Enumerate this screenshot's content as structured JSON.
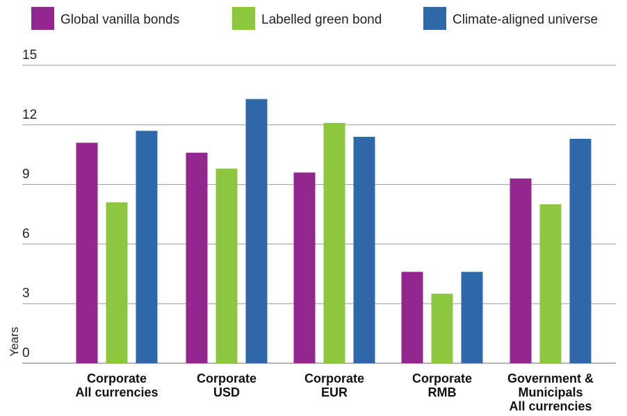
{
  "chart_data": {
    "type": "bar",
    "title": "",
    "xlabel": "",
    "ylabel": "Years",
    "ylim": [
      0,
      15
    ],
    "yticks": [
      0,
      3,
      6,
      9,
      12,
      15
    ],
    "grid": true,
    "legend_position": "top",
    "categories": [
      [
        "Corporate",
        "All currencies"
      ],
      [
        "Corporate",
        "USD"
      ],
      [
        "Corporate",
        "EUR"
      ],
      [
        "Corporate",
        "RMB"
      ],
      [
        "Government &",
        "Municipals",
        "All currencies"
      ]
    ],
    "series": [
      {
        "name": "Global vanilla bonds",
        "color": "#93278f",
        "values": [
          11.1,
          10.6,
          9.6,
          4.6,
          9.3
        ]
      },
      {
        "name": "Labelled green bond",
        "color": "#8dc63f",
        "values": [
          8.1,
          9.8,
          12.1,
          3.5,
          8.0
        ]
      },
      {
        "name": "Climate-aligned universe",
        "color": "#2e68a8",
        "values": [
          11.7,
          13.3,
          11.4,
          4.6,
          11.3
        ]
      }
    ]
  }
}
